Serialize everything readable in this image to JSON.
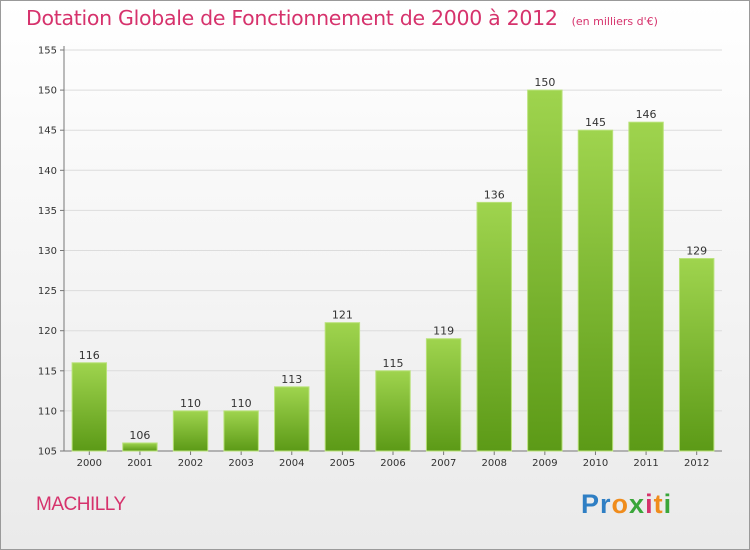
{
  "header": {
    "title": "Dotation Globale de Fonctionnement de 2000 à 2012",
    "unit": "(en milliers d'€)"
  },
  "commune": "MACHILLY",
  "logo": {
    "text": "Proxiti",
    "letters": [
      {
        "char": "P",
        "color": "#2f7fc4"
      },
      {
        "char": "r",
        "color": "#2f7fc4"
      },
      {
        "char": "o",
        "color": "#f08c1c"
      },
      {
        "char": "x",
        "color": "#3aa63a"
      },
      {
        "char": "i",
        "color": "#d6326c"
      },
      {
        "char": "t",
        "color": "#f08c1c"
      },
      {
        "char": "i",
        "color": "#3aa63a"
      }
    ]
  },
  "colors": {
    "accent": "#d6326c",
    "bar_top": "#9fd44e",
    "bar_bottom": "#5c9a17"
  },
  "chart_data": {
    "type": "bar",
    "title": "Dotation Globale de Fonctionnement de 2000 à 2012",
    "subtitle": "(en milliers d'€)",
    "categories": [
      "2000",
      "2001",
      "2002",
      "2003",
      "2004",
      "2005",
      "2006",
      "2007",
      "2008",
      "2009",
      "2010",
      "2011",
      "2012"
    ],
    "values": [
      116,
      106,
      110,
      110,
      113,
      121,
      115,
      119,
      136,
      150,
      145,
      146,
      129
    ],
    "ylim": [
      105,
      155
    ],
    "yticks": [
      105,
      110,
      115,
      120,
      125,
      130,
      135,
      140,
      145,
      150,
      155
    ],
    "xlabel": "",
    "ylabel": "",
    "grid": "horizontal",
    "legend": "none"
  }
}
